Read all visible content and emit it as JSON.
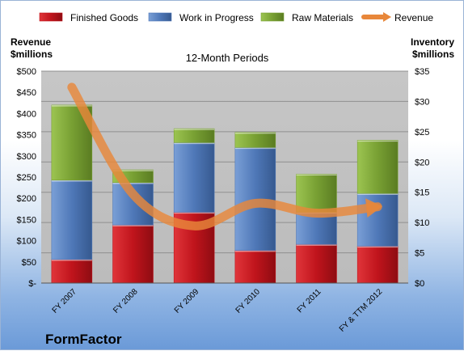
{
  "chart_data": {
    "type": "bar",
    "title": "12-Month Periods",
    "categories": [
      "FY 2007",
      "FY 2008",
      "FY 2009",
      "FY 2010",
      "FY 2011",
      "FY & TTM 2012"
    ],
    "stacked": true,
    "series": [
      {
        "name": "Finished Goods",
        "axis": "right",
        "values": [
          3.9,
          9.6,
          11.7,
          5.4,
          6.4,
          6.1
        ],
        "color": "#c0141c"
      },
      {
        "name": "Work in Progress",
        "axis": "right",
        "values": [
          13.1,
          7.0,
          11.5,
          17.0,
          5.3,
          8.7
        ],
        "color": "#4f78b8"
      },
      {
        "name": "Raw Materials",
        "axis": "right",
        "values": [
          12.4,
          2.1,
          2.3,
          2.5,
          6.3,
          8.8
        ],
        "color": "#78a033"
      },
      {
        "name": "Revenue",
        "type": "line",
        "axis": "left",
        "values": [
          462,
          210,
          135,
          188,
          165,
          180
        ],
        "color": "#e8873a"
      }
    ],
    "y_left": {
      "label": "Revenue $millions",
      "min": 0,
      "max": 500,
      "ticks": [
        "$-",
        "$50",
        "$100",
        "$150",
        "$200",
        "$250",
        "$300",
        "$350",
        "$400",
        "$450",
        "$500"
      ]
    },
    "y_right": {
      "label": "Inventory $millions",
      "min": 0,
      "max": 35,
      "ticks": [
        "$0",
        "$5",
        "$10",
        "$15",
        "$20",
        "$25",
        "$30",
        "$35"
      ]
    },
    "legend_position": "top",
    "grid": true
  },
  "y_left_label": [
    "Revenue",
    "$millions"
  ],
  "y_right_label": [
    "Inventory",
    "$millions"
  ],
  "brand": "FormFactor"
}
